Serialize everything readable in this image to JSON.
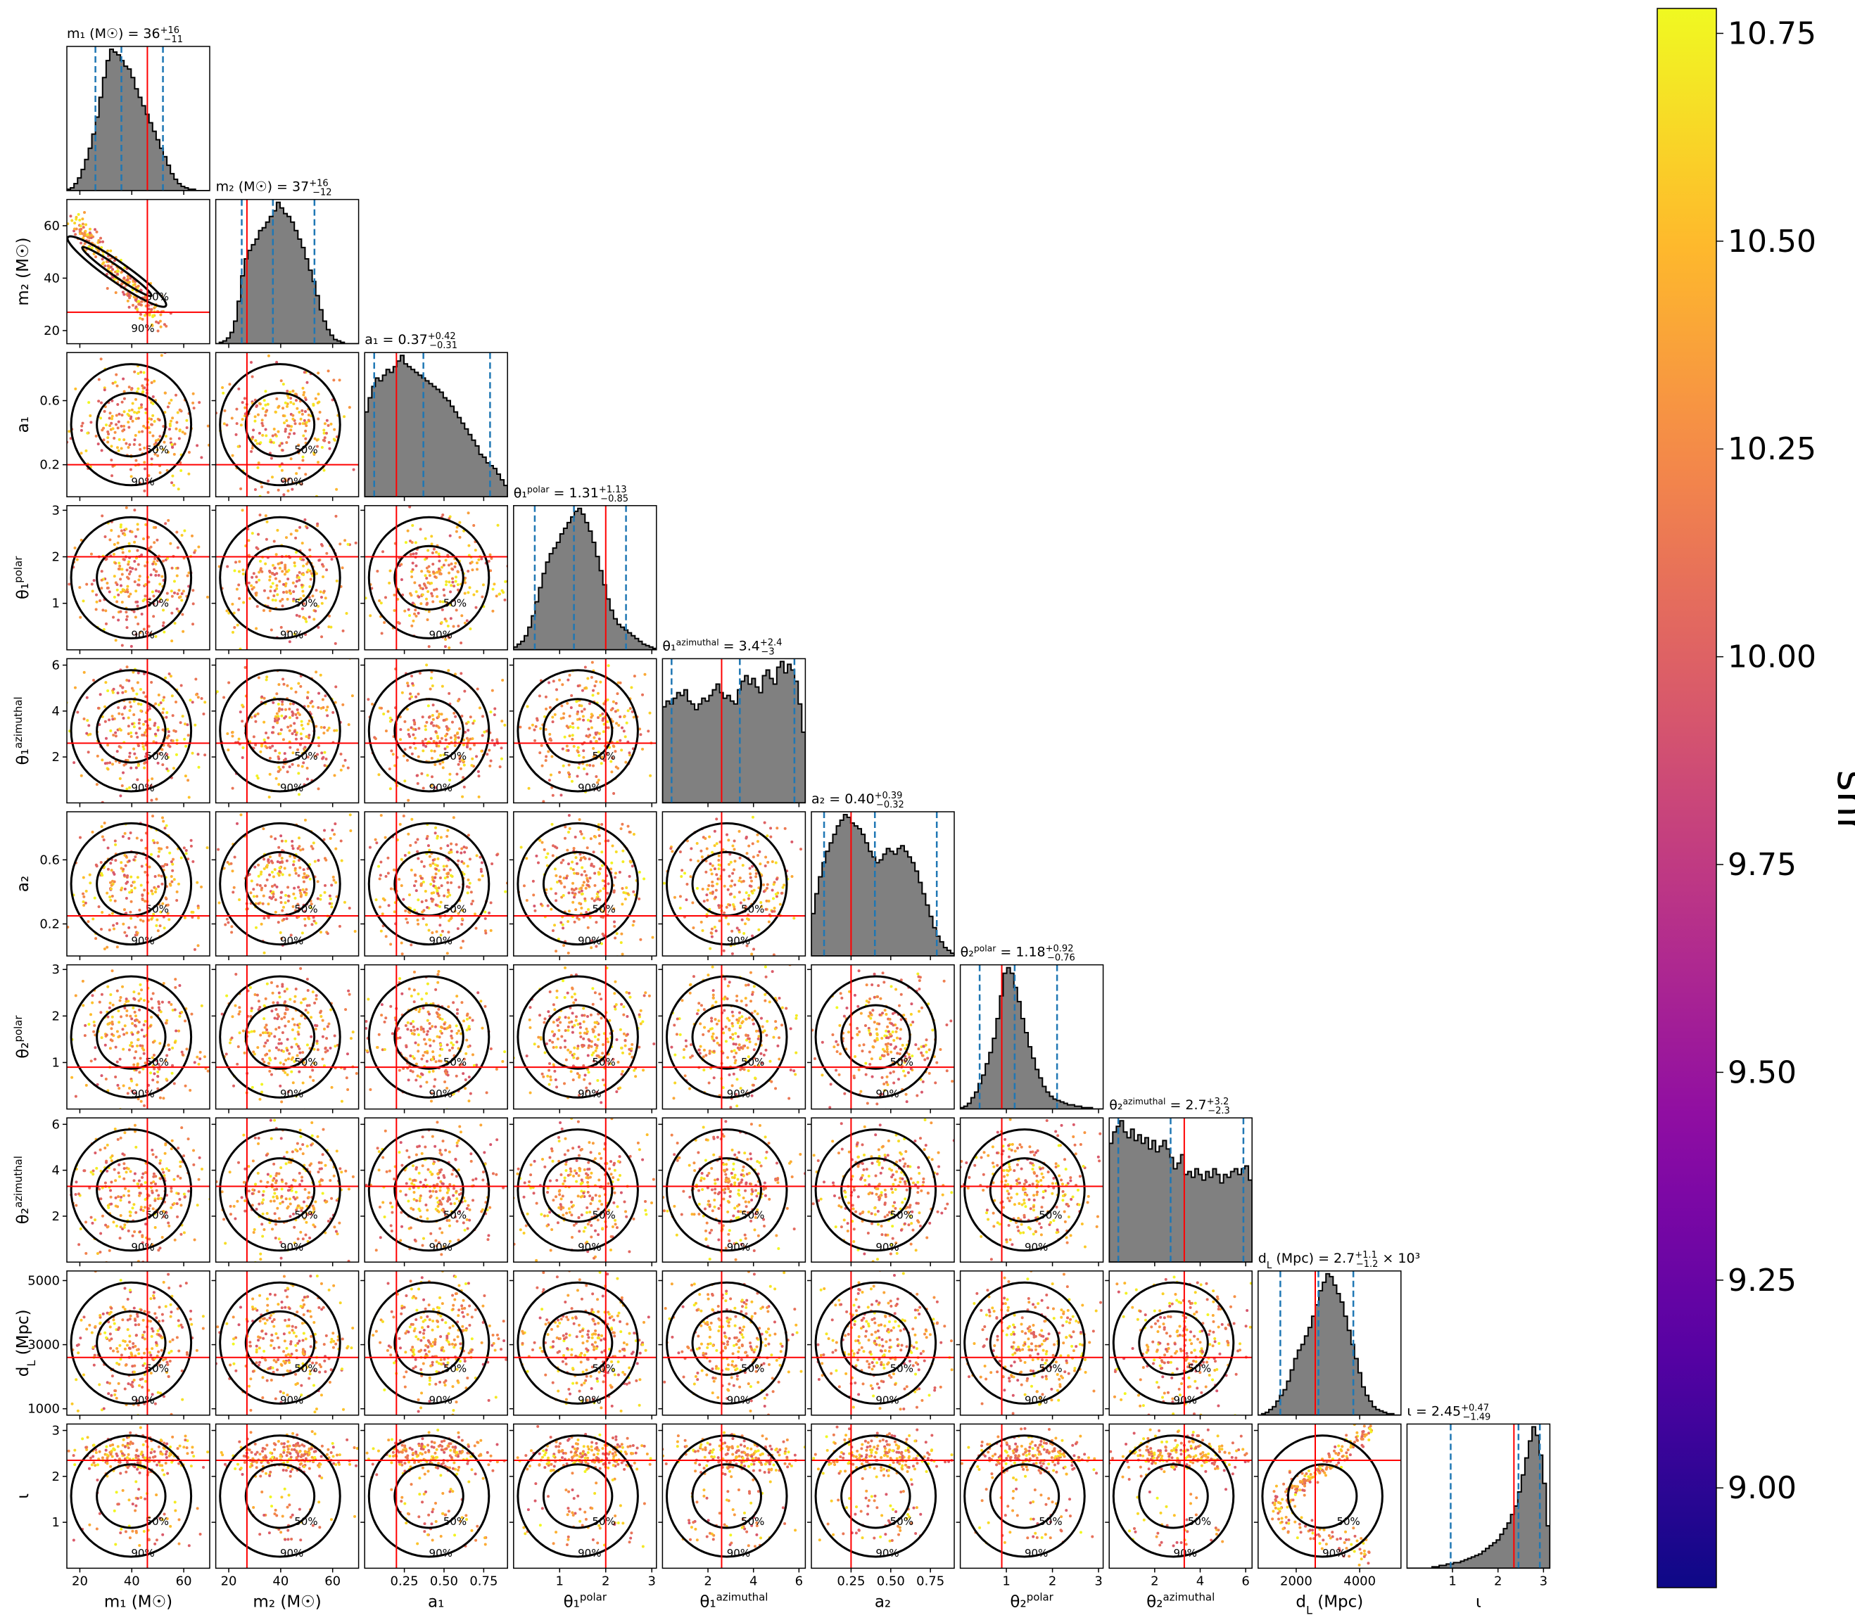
{
  "chart_data": {
    "type": "scatter",
    "subtype": "corner-plot",
    "params": [
      {
        "key": "m1",
        "axis": "m₁ (M☉)",
        "title": "m₁ (M☉) = 36",
        "sup": "+16",
        "sub": "−11",
        "median": 36,
        "truth": 46,
        "range": [
          15,
          70
        ],
        "q": [
          26,
          36,
          52
        ],
        "ticks": [
          20,
          40,
          60
        ],
        "tickLabels": [
          "20",
          "40",
          "60"
        ],
        "hist": [
          1,
          2,
          5,
          9,
          15,
          22,
          30,
          40,
          52,
          66,
          80,
          92,
          100,
          98,
          96,
          92,
          88,
          86,
          80,
          72,
          66,
          60,
          54,
          48,
          42,
          36,
          30,
          24,
          18,
          12,
          8,
          5,
          3,
          2,
          1,
          1,
          0,
          0,
          0,
          0
        ]
      },
      {
        "key": "m2",
        "axis": "m₂ (M☉)",
        "title": "m₂ (M☉) = 37",
        "sup": "+16",
        "sub": "−12",
        "median": 37,
        "truth": 27,
        "range": [
          15,
          70
        ],
        "q": [
          25,
          37,
          53
        ],
        "ticks": [
          20,
          40,
          60
        ],
        "tickLabels": [
          "20",
          "40",
          "60"
        ],
        "hist": [
          0,
          1,
          2,
          4,
          8,
          16,
          30,
          48,
          60,
          66,
          70,
          74,
          80,
          82,
          86,
          90,
          94,
          100,
          96,
          92,
          90,
          86,
          80,
          74,
          68,
          60,
          52,
          44,
          34,
          24,
          16,
          10,
          6,
          3,
          2,
          1,
          0,
          0,
          0,
          0
        ]
      },
      {
        "key": "a1",
        "axis": "a₁",
        "title": "a₁ = 0.37",
        "sup": "+0.42",
        "sub": "−0.31",
        "median": 0.37,
        "truth": 0.2,
        "range": [
          0.0,
          0.9
        ],
        "q": [
          0.06,
          0.37,
          0.79
        ],
        "ticks": [
          0.25,
          0.5,
          0.75
        ],
        "tickLabels": [
          "0.25",
          "0.50",
          "0.75"
        ],
        "yticks": [
          0.2,
          0.6
        ],
        "yTickLabels": [
          "0.2",
          "0.6"
        ],
        "hist": [
          60,
          70,
          78,
          84,
          82,
          86,
          90,
          88,
          92,
          96,
          100,
          94,
          92,
          90,
          88,
          86,
          84,
          82,
          80,
          78,
          76,
          74,
          70,
          68,
          64,
          60,
          56,
          52,
          48,
          44,
          40,
          36,
          30,
          28,
          24,
          22,
          20,
          16,
          12,
          8
        ]
      },
      {
        "key": "t1p",
        "axis": "θ₁^polar",
        "title": "θ₁^polar = 1.31",
        "sup": "+1.13",
        "sub": "−0.85",
        "median": 1.31,
        "truth": 2.0,
        "range": [
          0.0,
          3.1
        ],
        "q": [
          0.46,
          1.31,
          2.44
        ],
        "ticks": [
          1,
          2,
          3
        ],
        "tickLabels": [
          "1",
          "2",
          "3"
        ],
        "hist": [
          2,
          4,
          6,
          10,
          16,
          24,
          34,
          44,
          54,
          62,
          68,
          72,
          76,
          82,
          86,
          90,
          94,
          98,
          100,
          96,
          90,
          84,
          76,
          66,
          56,
          46,
          36,
          28,
          22,
          18,
          16,
          14,
          12,
          10,
          8,
          6,
          4,
          3,
          2,
          1
        ]
      },
      {
        "key": "t1a",
        "axis": "θ₁^azimuthal",
        "title": "θ₁^azimuthal = 3.4",
        "sup": "+2.4",
        "sub": "−3",
        "median": 3.4,
        "truth": 2.6,
        "range": [
          0.0,
          6.28
        ],
        "q": [
          0.4,
          3.4,
          5.8
        ],
        "ticks": [
          2,
          4,
          6
        ],
        "tickLabels": [
          "2",
          "4",
          "6"
        ],
        "hist": [
          68,
          72,
          70,
          74,
          78,
          76,
          80,
          72,
          70,
          66,
          70,
          74,
          72,
          76,
          80,
          84,
          78,
          74,
          76,
          72,
          70,
          80,
          86,
          90,
          84,
          88,
          82,
          78,
          90,
          94,
          88,
          84,
          96,
          100,
          92,
          98,
          94,
          86,
          70,
          50
        ]
      },
      {
        "key": "a2",
        "axis": "a₂",
        "title": "a₂ = 0.40",
        "sup": "+0.39",
        "sub": "−0.32",
        "median": 0.4,
        "truth": 0.25,
        "range": [
          0.0,
          0.9
        ],
        "q": [
          0.08,
          0.4,
          0.79
        ],
        "ticks": [
          0.25,
          0.5,
          0.75
        ],
        "tickLabels": [
          "0.25",
          "0.50",
          "0.75"
        ],
        "yticks": [
          0.2,
          0.6
        ],
        "yTickLabels": [
          "0.2",
          "0.6"
        ],
        "hist": [
          30,
          44,
          56,
          66,
          74,
          80,
          86,
          92,
          96,
          100,
          98,
          94,
          92,
          90,
          86,
          80,
          74,
          70,
          66,
          68,
          72,
          76,
          74,
          72,
          76,
          78,
          74,
          70,
          66,
          60,
          52,
          44,
          36,
          28,
          20,
          14,
          10,
          6,
          4,
          2
        ]
      },
      {
        "key": "t2p",
        "axis": "θ₂^polar",
        "title": "θ₂^polar = 1.18",
        "sup": "+0.92",
        "sub": "−0.76",
        "median": 1.18,
        "truth": 0.9,
        "range": [
          0.0,
          3.1
        ],
        "q": [
          0.42,
          1.18,
          2.1
        ],
        "ticks": [
          1,
          2,
          3
        ],
        "tickLabels": [
          "1",
          "2",
          "3"
        ],
        "hist": [
          1,
          2,
          4,
          8,
          12,
          18,
          24,
          32,
          40,
          50,
          64,
          80,
          96,
          100,
          96,
          86,
          76,
          64,
          54,
          44,
          36,
          28,
          22,
          16,
          12,
          9,
          7,
          6,
          5,
          4,
          3,
          3,
          2,
          2,
          1,
          1,
          1,
          0,
          0,
          0
        ]
      },
      {
        "key": "t2a",
        "axis": "θ₂^azimuthal",
        "title": "θ₂^azimuthal = 2.7",
        "sup": "+3.2",
        "sub": "−2.3",
        "median": 2.7,
        "truth": 3.3,
        "range": [
          0.0,
          6.28
        ],
        "q": [
          0.4,
          2.7,
          5.9
        ],
        "ticks": [
          2,
          4,
          6
        ],
        "tickLabels": [
          "2",
          "4",
          "6"
        ],
        "hist": [
          84,
          92,
          96,
          100,
          92,
          88,
          94,
          86,
          90,
          84,
          88,
          80,
          86,
          78,
          82,
          86,
          80,
          74,
          66,
          70,
          76,
          62,
          64,
          60,
          66,
          62,
          58,
          64,
          60,
          66,
          62,
          56,
          62,
          60,
          64,
          66,
          62,
          66,
          68,
          58
        ]
      },
      {
        "key": "dL",
        "axis": "d_L (Mpc)",
        "title": "d_L (Mpc) = 2.7",
        "sup": "+1.1",
        "sub": "−1.2",
        "suffix": "× 10³",
        "median": 2700,
        "truth": 2600,
        "range": [
          800,
          5300
        ],
        "q": [
          1500,
          2700,
          3800
        ],
        "ticks": [
          2000,
          4000
        ],
        "tickLabels": [
          "2000",
          "4000"
        ],
        "yticks": [
          1000,
          3000,
          5000
        ],
        "yTickLabels": [
          "1000",
          "3000",
          "5000"
        ],
        "hist": [
          0,
          1,
          2,
          4,
          6,
          10,
          14,
          18,
          24,
          32,
          40,
          46,
          50,
          56,
          62,
          70,
          78,
          88,
          94,
          100,
          98,
          92,
          86,
          80,
          70,
          60,
          50,
          40,
          30,
          20,
          14,
          10,
          6,
          4,
          3,
          2,
          1,
          1,
          0,
          0
        ]
      },
      {
        "key": "iota",
        "axis": "ι",
        "title": "ι = 2.45",
        "sup": "+0.47",
        "sub": "−1.49",
        "median": 2.45,
        "truth": 2.35,
        "range": [
          0.0,
          3.14
        ],
        "q": [
          0.96,
          2.45,
          2.92
        ],
        "ticks": [
          1,
          2,
          3
        ],
        "tickLabels": [
          "1",
          "2",
          "3"
        ],
        "hist": [
          0,
          0,
          0,
          0,
          0,
          0,
          0,
          1,
          1,
          2,
          2,
          3,
          3,
          4,
          4,
          5,
          6,
          7,
          8,
          9,
          10,
          12,
          14,
          16,
          18,
          20,
          24,
          28,
          32,
          38,
          44,
          54,
          66,
          78,
          90,
          100,
          94,
          80,
          60,
          30
        ]
      }
    ],
    "truth_color": "#ff0000",
    "quantile_color": "#1f77b4",
    "hist_fill": "#808080",
    "contour_levels": [
      "50%",
      "90%"
    ],
    "colorbar": {
      "label": "snr",
      "range": [
        8.88,
        10.78
      ],
      "ticks": [
        9.0,
        9.25,
        9.5,
        9.75,
        10.0,
        10.25,
        10.5,
        10.75
      ],
      "tickLabels": [
        "9.00",
        "9.25",
        "9.50",
        "9.75",
        "10.00",
        "10.25",
        "10.50",
        "10.75"
      ],
      "colormap": "plasma"
    }
  }
}
